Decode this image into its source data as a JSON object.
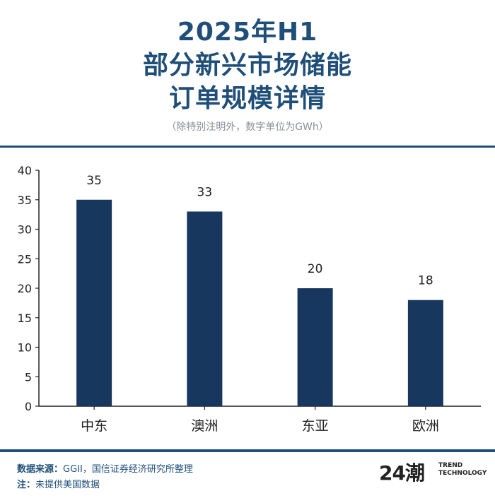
{
  "header": {
    "title_lines": [
      "2025年H1",
      "部分新兴市场储能",
      "订单规模详情"
    ],
    "subtitle": "（除特别注明外，数字单位为GWh）"
  },
  "chart_data": {
    "type": "bar",
    "categories": [
      "中东",
      "澳洲",
      "东亚",
      "欧洲"
    ],
    "values": [
      35,
      33,
      20,
      18
    ],
    "data_labels": [
      "35",
      "33",
      "20",
      "18"
    ],
    "yticks": [
      0,
      5,
      10,
      15,
      20,
      25,
      30,
      35,
      40
    ],
    "ylim": [
      0,
      40
    ],
    "bar_color": "#17375e",
    "grid": false
  },
  "footer": {
    "source_label": "数据来源：",
    "source_text": "GGII，国信证券经济研究所整理",
    "note_label": "注：",
    "note_text": "未提供美国数据"
  },
  "logo": {
    "mark": "24潮",
    "line1": "TREND",
    "line2": "TECHNOLOGY"
  }
}
